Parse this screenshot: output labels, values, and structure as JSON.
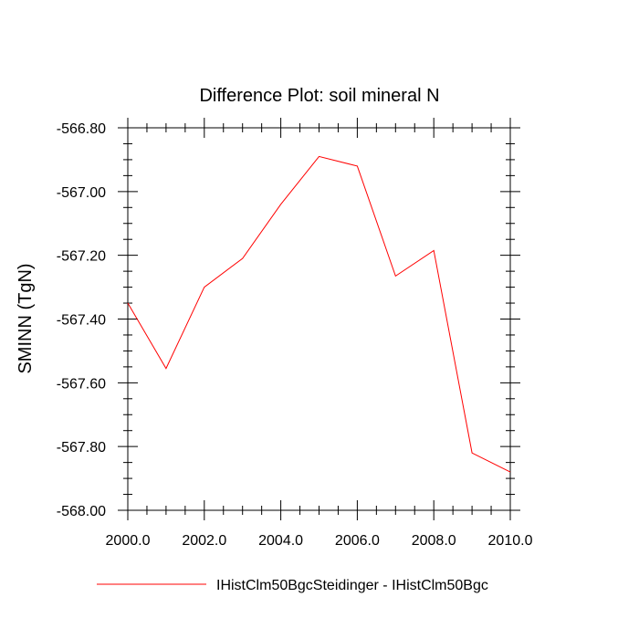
{
  "chart_data": {
    "type": "line",
    "title": "Difference Plot: soil mineral N",
    "xlabel": "",
    "ylabel": "SMINN  (TgN)",
    "xlim": [
      2000.0,
      2010.0
    ],
    "ylim": [
      -568.0,
      -566.8
    ],
    "xticks": [
      2000.0,
      2002.0,
      2004.0,
      2006.0,
      2008.0,
      2010.0
    ],
    "xtick_labels": [
      "2000.0",
      "2002.0",
      "2004.0",
      "2006.0",
      "2008.0",
      "2010.0"
    ],
    "yticks": [
      -566.8,
      -567.0,
      -567.2,
      -567.4,
      -567.6,
      -567.8,
      -568.0
    ],
    "ytick_labels": [
      "-566.80",
      "-567.00",
      "-567.20",
      "-567.40",
      "-567.60",
      "-567.80",
      "-568.00"
    ],
    "grid": false,
    "legend_position": "bottom",
    "series": [
      {
        "name": "IHistClm50BgcSteidinger - IHistClm50Bgc",
        "color": "#ff0000",
        "x": [
          2000,
          2001,
          2002,
          2003,
          2004,
          2005,
          2006,
          2007,
          2008,
          2009,
          2010
        ],
        "y": [
          -567.35,
          -567.555,
          -567.3,
          -567.21,
          -567.04,
          -566.89,
          -566.92,
          -567.265,
          -567.185,
          -567.82,
          -567.88
        ]
      }
    ]
  }
}
